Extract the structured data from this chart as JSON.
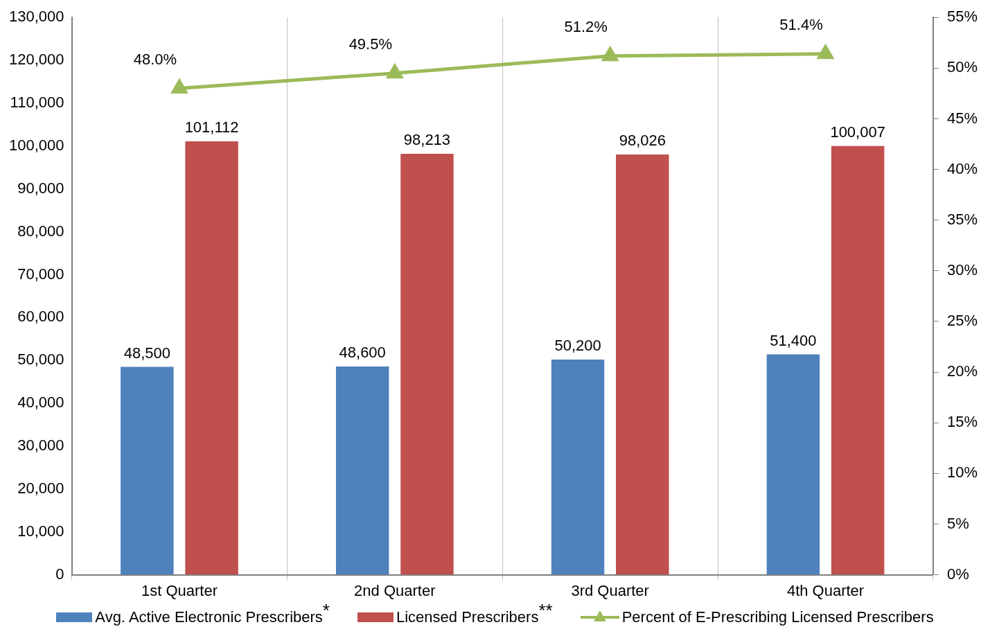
{
  "chart_data": {
    "type": "bar",
    "categories": [
      "1st Quarter",
      "2nd Quarter",
      "3rd Quarter",
      "4th Quarter"
    ],
    "series": [
      {
        "name": "Avg. Active Electronic Prescribers$^{*}$",
        "color": "#4f81bd",
        "values": [
          48500,
          48600,
          50200,
          51400
        ],
        "value_labels": [
          "48,500",
          "48,600",
          "50,200",
          "51,400"
        ]
      },
      {
        "name": "Licensed Prescribers$^{**}$",
        "color": "#c0504d",
        "values": [
          101112,
          98213,
          98026,
          100007
        ],
        "value_labels": [
          "101,112",
          "98,213",
          "98,026",
          "100,007"
        ]
      },
      {
        "name": "Percent of E-Prescribing Licensed Prescribers",
        "type": "line",
        "axis": "y2",
        "color": "#9bbb59",
        "marker": "triangle",
        "values": [
          48.0,
          49.5,
          51.2,
          51.4
        ],
        "value_labels": [
          "48.0%",
          "49.5%",
          "51.2%",
          "51.4%"
        ]
      }
    ],
    "ylim": [
      0,
      130000
    ],
    "yticks": [
      0,
      {
        "value": 10000,
        "label": "10,000"
      },
      {
        "value": 20000,
        "label": "20,000"
      },
      {
        "value": 30000,
        "label": "30,000"
      },
      {
        "value": 40000,
        "label": "40,000"
      },
      {
        "value": 50000,
        "label": "50,000"
      },
      {
        "value": 60000,
        "label": "60,000"
      },
      {
        "value": 70000,
        "label": "70,000"
      },
      {
        "value": 80000,
        "label": "80,000"
      },
      {
        "value": 90000,
        "label": "90,000"
      },
      {
        "value": 100000,
        "label": "100,000"
      },
      {
        "value": 110000,
        "label": "110,000"
      },
      {
        "value": 120000,
        "label": "120,000"
      },
      {
        "value": 130000,
        "label": "130,000"
      }
    ],
    "y2lim": [
      0,
      55
    ],
    "y2ticks": [
      {
        "value": 0,
        "label": "0%"
      },
      {
        "value": 5,
        "label": "5%"
      },
      {
        "value": 10,
        "label": "10%"
      },
      {
        "value": 15,
        "label": "15%"
      },
      {
        "value": 20,
        "label": "20%"
      },
      {
        "value": 25,
        "label": "25%"
      },
      {
        "value": 30,
        "label": "30%"
      },
      {
        "value": 35,
        "label": "35%"
      },
      {
        "value": 40,
        "label": "40%"
      },
      {
        "value": 45,
        "label": "45%"
      },
      {
        "value": 50,
        "label": "50%"
      },
      {
        "value": 55,
        "label": "55%"
      }
    ],
    "grid": "x",
    "legend": "bottom"
  }
}
